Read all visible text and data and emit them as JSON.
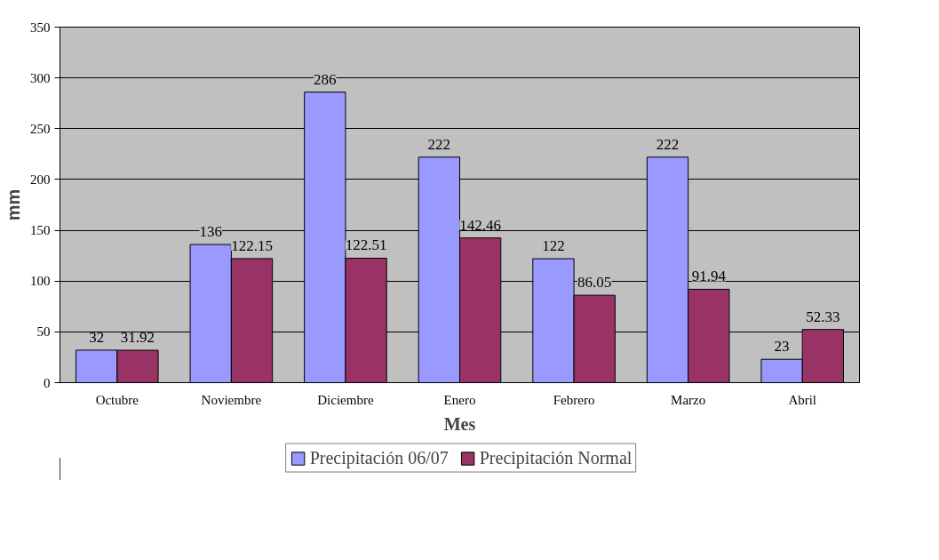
{
  "chart_data": {
    "type": "bar",
    "xlabel": "Mes",
    "ylabel": "mm",
    "categories": [
      "Octubre",
      "Noviembre",
      "Diciembre",
      "Enero",
      "Febrero",
      "Marzo",
      "Abril"
    ],
    "series": [
      {
        "name": "Precipitación 06/07",
        "color": "#9999ff",
        "values": [
          32,
          136,
          286,
          222,
          122,
          222,
          23
        ]
      },
      {
        "name": "Precipitación Normal",
        "color": "#993366",
        "values": [
          31.92,
          122.15,
          122.51,
          142.46,
          86.05,
          91.94,
          52.33
        ]
      }
    ],
    "ylim": [
      0,
      350
    ],
    "yticks": [
      0,
      50,
      100,
      150,
      200,
      250,
      300,
      350
    ],
    "grid": "y",
    "legend": "bottom",
    "data_labels": true
  }
}
